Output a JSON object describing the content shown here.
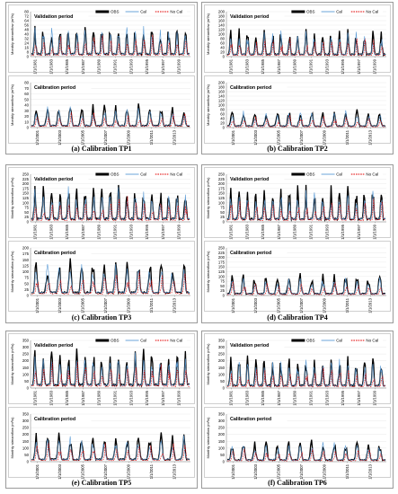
{
  "panels": [
    {
      "caption": "(a) Calibration TP1",
      "ylabel": "Monthly streamflow (m³/s)",
      "legend": [
        "OBS",
        "Cal",
        "No Cal"
      ],
      "validation": {
        "title": "Validation period",
        "ymax": 80,
        "ytick": 8,
        "yticks": [
          "0",
          "8",
          "16",
          "24",
          "32",
          "40",
          "48",
          "56",
          "64",
          "72",
          "80"
        ],
        "xticks": [
          "1/1/1981",
          "1/1/1983",
          "1/1/1985",
          "1/1/1987",
          "1/1/1989",
          "1/1/1991",
          "1/1/1993",
          "1/1/1995",
          "1/1/1997",
          "1/1/1999"
        ],
        "peak": 55
      },
      "calibration": {
        "title": "Calibration period",
        "ymax": 80,
        "ytick": 10,
        "yticks": [
          "0",
          "10",
          "20",
          "30",
          "40",
          "50",
          "60",
          "70",
          "80"
        ],
        "xticks": [
          "1/1/2001",
          "1/1/2003",
          "1/1/2005",
          "1/1/2007",
          "1/1/2009",
          "1/1/2011",
          "1/1/2013"
        ],
        "peak": 40
      }
    },
    {
      "caption": "(b) Calibration TP2",
      "ylabel": "Monthly streamflow (m³/s)",
      "legend": [
        "OBS",
        "Cal",
        "No Cal"
      ],
      "validation": {
        "title": "Validation period",
        "ymax": 200,
        "ytick": 20,
        "yticks": [
          "0",
          "20",
          "40",
          "60",
          "80",
          "100",
          "120",
          "140",
          "160",
          "180",
          "200"
        ],
        "xticks": [
          "1/1/1981",
          "1/1/1983",
          "1/1/1985",
          "1/1/1987",
          "1/1/1989",
          "1/1/1991",
          "1/1/1993",
          "1/1/1995",
          "1/1/1997",
          "1/1/1999"
        ],
        "peak": 120
      },
      "calibration": {
        "title": "Calibration period",
        "ymax": 200,
        "ytick": 20,
        "yticks": [
          "0",
          "20",
          "40",
          "60",
          "80",
          "100",
          "120",
          "140",
          "160",
          "180",
          "200"
        ],
        "xticks": [
          "1/1/2001",
          "1/1/2003",
          "1/1/2005",
          "1/1/2007",
          "1/1/2009",
          "1/1/2011",
          "1/1/2013"
        ],
        "peak": 80
      }
    },
    {
      "caption": "(c) Calibration TP3",
      "ylabel": "Monthly streamflow (m³/s)",
      "legend": [
        "OBS",
        "Cal",
        "No Cal"
      ],
      "validation": {
        "title": "Validation period",
        "ymax": 250,
        "ytick": 25,
        "yticks": [
          "0",
          "25",
          "50",
          "75",
          "100",
          "125",
          "150",
          "175",
          "200",
          "225",
          "250"
        ],
        "xticks": [
          "1/1/1981",
          "1/1/1983",
          "1/1/1985",
          "1/1/1987",
          "1/1/1989",
          "1/1/1991",
          "1/1/1993",
          "1/1/1995",
          "1/1/1997",
          "1/1/1999"
        ],
        "peak": 190
      },
      "calibration": {
        "title": "Calibration period",
        "ymax": 200,
        "ytick": 25,
        "yticks": [
          "0",
          "25",
          "50",
          "75",
          "100",
          "125",
          "150",
          "175",
          "200"
        ],
        "xticks": [
          "1/1/2001",
          "1/1/2003",
          "1/1/2005",
          "1/1/2007",
          "1/1/2009",
          "1/1/2011",
          "1/1/2013"
        ],
        "peak": 150
      }
    },
    {
      "caption": "(d) Calibration TP4",
      "ylabel": "Monthly streamflow (m³/s)",
      "legend": [
        "OBS",
        "Cal",
        "No Cal"
      ],
      "validation": {
        "title": "Validation period",
        "ymax": 250,
        "ytick": 25,
        "yticks": [
          "0",
          "25",
          "50",
          "75",
          "100",
          "125",
          "150",
          "175",
          "200",
          "225",
          "250"
        ],
        "xticks": [
          "1/1/1981",
          "1/1/1983",
          "1/1/1985",
          "1/1/1987",
          "1/1/1989",
          "1/1/1991",
          "1/1/1993",
          "1/1/1995",
          "1/1/1997",
          "1/1/1999"
        ],
        "peak": 180
      },
      "calibration": {
        "title": "Calibration period",
        "ymax": 250,
        "ytick": 25,
        "yticks": [
          "0",
          "25",
          "50",
          "75",
          "100",
          "125",
          "150",
          "175",
          "200",
          "225",
          "250"
        ],
        "xticks": [
          "1/1/2001",
          "1/1/2003",
          "1/1/2005",
          "1/1/2007",
          "1/1/2009",
          "1/1/2011",
          "1/1/2013"
        ],
        "peak": 110
      }
    },
    {
      "caption": "(e) Calibration TP5",
      "ylabel": "Monthly streamflow (m³/s)",
      "legend": [
        "OBS",
        "Cal",
        "No Cal"
      ],
      "validation": {
        "title": "Validation period",
        "ymax": 350,
        "ytick": 50,
        "yticks": [
          "0",
          "50",
          "100",
          "150",
          "200",
          "250",
          "300",
          "350"
        ],
        "xticks": [
          "1/1/1981",
          "1/1/1983",
          "1/1/1985",
          "1/1/1987",
          "1/1/1989",
          "1/1/1991",
          "1/1/1993",
          "1/1/1995",
          "1/1/1997",
          "1/1/1999"
        ],
        "peak": 280
      },
      "calibration": {
        "title": "Calibration period",
        "ymax": 350,
        "ytick": 50,
        "yticks": [
          "0",
          "50",
          "100",
          "150",
          "200",
          "250",
          "300",
          "350"
        ],
        "xticks": [
          "1/1/2001",
          "1/1/2003",
          "1/1/2005",
          "1/1/2007",
          "1/1/2009",
          "1/1/2011",
          "1/1/2013"
        ],
        "peak": 200
      }
    },
    {
      "caption": "(f) Calibration TP6",
      "ylabel": "Monthly streamflow (m³/s)",
      "legend": [
        "OBS",
        "Cal",
        "No Cal"
      ],
      "validation": {
        "title": "Validation period",
        "ymax": 350,
        "ytick": 50,
        "yticks": [
          "0",
          "50",
          "100",
          "150",
          "200",
          "250",
          "300",
          "350"
        ],
        "xticks": [
          "1/1/1981",
          "1/1/1983",
          "1/1/1985",
          "1/1/1987",
          "1/1/1989",
          "1/1/1991",
          "1/1/1993",
          "1/1/1995",
          "1/1/1997",
          "1/1/1999"
        ],
        "peak": 230
      },
      "calibration": {
        "title": "Calibration period",
        "ymax": 350,
        "ytick": 50,
        "yticks": [
          "0",
          "50",
          "100",
          "150",
          "200",
          "250",
          "300",
          "350"
        ],
        "xticks": [
          "1/1/2001",
          "1/1/2003",
          "1/1/2005",
          "1/1/2007",
          "1/1/2009",
          "1/1/2011",
          "1/1/2013"
        ],
        "peak": 150
      }
    }
  ],
  "chart_data": {
    "type": "line",
    "note_series": [
      "OBS",
      "Cal",
      "No Cal"
    ],
    "colors": {
      "obs": "#000000",
      "cal": "#5b9bd5",
      "nocal": "#e00000"
    }
  }
}
